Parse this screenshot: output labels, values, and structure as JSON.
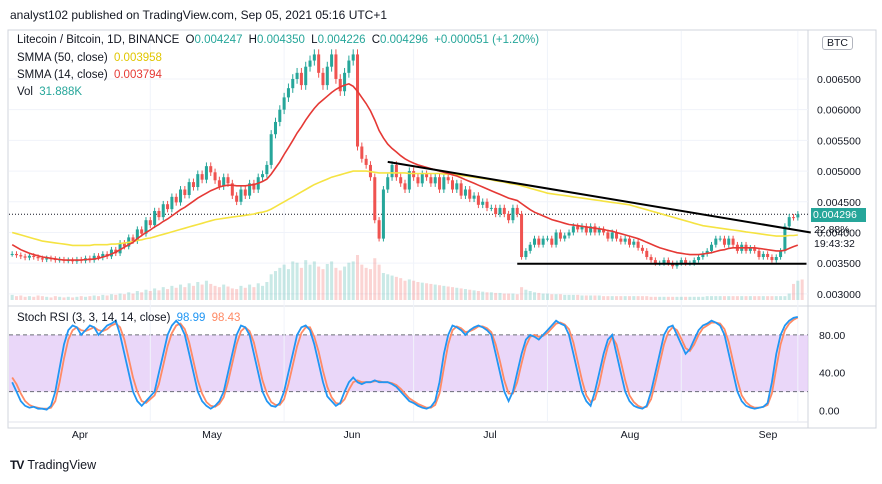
{
  "header": {
    "published_line": "analyst102 published on TradingView.com, Sep 05, 2021 05:16 UTC+1"
  },
  "legend": {
    "symbol": "Litecoin / Bitcoin, 1D, BINANCE",
    "open_label": "O",
    "open": "0.004247",
    "high_label": "H",
    "high": "0.004350",
    "low_label": "L",
    "low": "0.004226",
    "close_label": "C",
    "close": "0.004296",
    "change": "+0.000051 (+1.20%)",
    "sma50_label": "SMMA (50, close)",
    "sma50_value": "0.003958",
    "sma14_label": "SMMA (14, close)",
    "sma14_value": "0.003794",
    "vol_label": "Vol",
    "vol_value": "31.888K",
    "stoch_label": "Stoch RSI (3, 3, 14, 14, close)",
    "stoch_k": "98.99",
    "stoch_d": "98.43"
  },
  "price_panel": {
    "currency_badge": "BTC",
    "current_price": "0.004296",
    "change_pct": "22.88%",
    "countdown": "19:43:32"
  },
  "footer": {
    "logo": "TV",
    "brand": "TradingView"
  },
  "colors": {
    "up": "#26a69a",
    "down": "#ef5350",
    "smma50": "#f5e342",
    "smma14": "#e53935",
    "stoch_k": "#2196f3",
    "stoch_d": "#ff8a65",
    "stoch_band": "#e1c6f7",
    "trendline": "#000000"
  },
  "chart_data": {
    "type": "candlestick",
    "x_ticks": [
      "Apr",
      "May",
      "Jun",
      "Jul",
      "Aug",
      "Sep"
    ],
    "y_ticks": [
      "0.006500",
      "0.006000",
      "0.005500",
      "0.005000",
      "0.004500",
      "0.004000",
      "0.003500",
      "0.003000"
    ],
    "y_tick_values": [
      0.0065,
      0.006,
      0.0055,
      0.005,
      0.0045,
      0.004,
      0.0035,
      0.003
    ],
    "ylim": [
      0.0029,
      0.0072
    ],
    "stoch_ticks": [
      "80.00",
      "40.00",
      "0.00"
    ],
    "stoch_tick_values": [
      80,
      40,
      0
    ],
    "stoch_ylim": [
      -10,
      100
    ],
    "closes": [
      0.00365,
      0.00363,
      0.00361,
      0.00359,
      0.00362,
      0.0036,
      0.00358,
      0.00356,
      0.00358,
      0.00357,
      0.00355,
      0.00356,
      0.00354,
      0.00355,
      0.00353,
      0.00356,
      0.00354,
      0.00358,
      0.00355,
      0.00362,
      0.00359,
      0.00365,
      0.00361,
      0.00372,
      0.00366,
      0.00383,
      0.00377,
      0.00392,
      0.00386,
      0.00405,
      0.00398,
      0.0042,
      0.00412,
      0.00435,
      0.00425,
      0.00446,
      0.00438,
      0.00458,
      0.00449,
      0.0047,
      0.00461,
      0.00482,
      0.00474,
      0.00495,
      0.00486,
      0.00508,
      0.00498,
      0.00485,
      0.00475,
      0.0049,
      0.0048,
      0.0046,
      0.0045,
      0.0047,
      0.0046,
      0.0048,
      0.0047,
      0.0049,
      0.00495,
      0.0051,
      0.0056,
      0.0058,
      0.006,
      0.0062,
      0.00635,
      0.0065,
      0.0066,
      0.0064,
      0.0067,
      0.0068,
      0.0069,
      0.0066,
      0.0064,
      0.0067,
      0.0069,
      0.0065,
      0.0063,
      0.0066,
      0.0068,
      0.0069,
      0.0054,
      0.0052,
      0.0051,
      0.0049,
      0.0042,
      0.0039,
      0.0047,
      0.0049,
      0.0051,
      0.0049,
      0.0048,
      0.0047,
      0.005,
      0.0049,
      0.0048,
      0.00495,
      0.0049,
      0.0048,
      0.0049,
      0.0047,
      0.0049,
      0.00485,
      0.0047,
      0.0048,
      0.0046,
      0.0047,
      0.00455,
      0.0046,
      0.00445,
      0.0045,
      0.0044,
      0.0044,
      0.0043,
      0.0044,
      0.0043,
      0.0042,
      0.0044,
      0.0043,
      0.0036,
      0.0037,
      0.0038,
      0.0039,
      0.0038,
      0.0039,
      0.0039,
      0.0038,
      0.004,
      0.0039,
      0.00395,
      0.004,
      0.0041,
      0.00405,
      0.0041,
      0.004,
      0.0041,
      0.004,
      0.00405,
      0.004,
      0.0039,
      0.004,
      0.0039,
      0.00385,
      0.0039,
      0.0038,
      0.00385,
      0.00375,
      0.0037,
      0.0036,
      0.00355,
      0.0035,
      0.0035,
      0.00355,
      0.0035,
      0.00345,
      0.0035,
      0.00355,
      0.0035,
      0.0035,
      0.00355,
      0.0036,
      0.00365,
      0.0037,
      0.0038,
      0.0039,
      0.0039,
      0.0038,
      0.0039,
      0.0038,
      0.0037,
      0.0038,
      0.0037,
      0.00375,
      0.0037,
      0.0036,
      0.00365,
      0.0036,
      0.00355,
      0.0036,
      0.0037,
      0.0041,
      0.00425,
      0.004245,
      0.004296
    ],
    "smma50": [
      0.004,
      0.00398,
      0.00396,
      0.00394,
      0.00392,
      0.0039,
      0.00388,
      0.00386,
      0.00385,
      0.00384,
      0.00383,
      0.00382,
      0.00381,
      0.0038,
      0.00379,
      0.00379,
      0.00379,
      0.00379,
      0.00379,
      0.0038,
      0.0038,
      0.0038,
      0.0038,
      0.00381,
      0.00381,
      0.00382,
      0.00383,
      0.00384,
      0.00385,
      0.00387,
      0.00388,
      0.0039,
      0.00391,
      0.00393,
      0.00395,
      0.00397,
      0.00399,
      0.00401,
      0.00403,
      0.00405,
      0.00407,
      0.00409,
      0.00411,
      0.00413,
      0.00415,
      0.00417,
      0.00419,
      0.00421,
      0.00422,
      0.00423,
      0.00424,
      0.00425,
      0.00426,
      0.00427,
      0.00428,
      0.00429,
      0.0043,
      0.00432,
      0.00433,
      0.00435,
      0.00438,
      0.00442,
      0.00446,
      0.0045,
      0.00454,
      0.00458,
      0.00462,
      0.00466,
      0.0047,
      0.00474,
      0.00478,
      0.00481,
      0.00484,
      0.00487,
      0.0049,
      0.00492,
      0.00494,
      0.00496,
      0.00498,
      0.005,
      0.005,
      0.005,
      0.005,
      0.00499,
      0.00498,
      0.00497,
      0.00497,
      0.00497,
      0.00497,
      0.00497,
      0.00497,
      0.00497,
      0.00496,
      0.00496,
      0.00496,
      0.00496,
      0.00496,
      0.00496,
      0.00496,
      0.00496,
      0.00495,
      0.00495,
      0.00495,
      0.00494,
      0.00493,
      0.00492,
      0.00491,
      0.0049,
      0.00489,
      0.00488,
      0.00487,
      0.00486,
      0.00484,
      0.00483,
      0.00482,
      0.0048,
      0.00479,
      0.00478,
      0.00476,
      0.00474,
      0.00472,
      0.0047,
      0.00468,
      0.00466,
      0.00464,
      0.00463,
      0.00462,
      0.00461,
      0.0046,
      0.00459,
      0.00458,
      0.00457,
      0.00456,
      0.00455,
      0.00454,
      0.00453,
      0.00452,
      0.00451,
      0.0045,
      0.00449,
      0.00448,
      0.00447,
      0.00446,
      0.00445,
      0.00443,
      0.00441,
      0.00439,
      0.00437,
      0.00435,
      0.00433,
      0.00431,
      0.00429,
      0.00427,
      0.00425,
      0.00423,
      0.00421,
      0.00419,
      0.00417,
      0.00415,
      0.00413,
      0.00411,
      0.0041,
      0.00409,
      0.00408,
      0.00407,
      0.00406,
      0.00405,
      0.00404,
      0.00403,
      0.00402,
      0.00401,
      0.004,
      0.00399,
      0.00398,
      0.00397,
      0.00396,
      0.00395,
      0.00394,
      0.00394,
      0.00394,
      0.00395,
      0.00395,
      0.003958
    ],
    "smma14": [
      0.0038,
      0.00376,
      0.00372,
      0.00369,
      0.00366,
      0.00364,
      0.00362,
      0.0036,
      0.00359,
      0.00358,
      0.00357,
      0.00356,
      0.00355,
      0.00355,
      0.00355,
      0.00355,
      0.00355,
      0.00356,
      0.00356,
      0.00357,
      0.00358,
      0.0036,
      0.00362,
      0.00365,
      0.00368,
      0.00372,
      0.00376,
      0.0038,
      0.00384,
      0.0039,
      0.00395,
      0.004,
      0.00404,
      0.00409,
      0.00413,
      0.00418,
      0.00422,
      0.00427,
      0.00432,
      0.00437,
      0.00441,
      0.00446,
      0.00451,
      0.00456,
      0.0046,
      0.00464,
      0.00468,
      0.00471,
      0.00474,
      0.00476,
      0.00477,
      0.00477,
      0.00476,
      0.00476,
      0.00476,
      0.00477,
      0.00478,
      0.0048,
      0.00483,
      0.00487,
      0.00495,
      0.00505,
      0.00515,
      0.00527,
      0.00538,
      0.0055,
      0.00562,
      0.00572,
      0.00583,
      0.00593,
      0.00602,
      0.0061,
      0.00616,
      0.00622,
      0.00628,
      0.00633,
      0.00637,
      0.0064,
      0.00642,
      0.00638,
      0.0063,
      0.0062,
      0.0061,
      0.00598,
      0.00583,
      0.00566,
      0.00554,
      0.00544,
      0.00537,
      0.00531,
      0.00525,
      0.0052,
      0.00516,
      0.00513,
      0.0051,
      0.00508,
      0.00506,
      0.00504,
      0.00502,
      0.005,
      0.00498,
      0.00496,
      0.00494,
      0.00492,
      0.00489,
      0.00486,
      0.00483,
      0.0048,
      0.00477,
      0.00474,
      0.00471,
      0.00468,
      0.00465,
      0.00462,
      0.00459,
      0.00456,
      0.00454,
      0.00452,
      0.00447,
      0.00442,
      0.00437,
      0.00433,
      0.0043,
      0.00427,
      0.00424,
      0.00421,
      0.00419,
      0.00417,
      0.00415,
      0.00413,
      0.00412,
      0.00411,
      0.0041,
      0.00409,
      0.00408,
      0.00407,
      0.00406,
      0.00405,
      0.00403,
      0.00402,
      0.004,
      0.00398,
      0.00396,
      0.00394,
      0.00392,
      0.0039,
      0.00387,
      0.00384,
      0.00381,
      0.00378,
      0.00375,
      0.00373,
      0.00371,
      0.00369,
      0.00367,
      0.00366,
      0.00365,
      0.00364,
      0.00364,
      0.00364,
      0.00365,
      0.00366,
      0.00367,
      0.00369,
      0.00371,
      0.00372,
      0.00374,
      0.00375,
      0.00375,
      0.00375,
      0.00375,
      0.00375,
      0.00375,
      0.00374,
      0.00373,
      0.00372,
      0.00371,
      0.0037,
      0.0037,
      0.00371,
      0.00374,
      0.00377,
      0.003794
    ],
    "volume": [
      8,
      6,
      7,
      5,
      6,
      5,
      7,
      6,
      5,
      4,
      6,
      5,
      4,
      5,
      4,
      5,
      6,
      5,
      6,
      7,
      6,
      8,
      7,
      9,
      8,
      10,
      9,
      12,
      10,
      14,
      12,
      16,
      14,
      18,
      15,
      20,
      17,
      22,
      19,
      24,
      20,
      26,
      22,
      28,
      24,
      30,
      25,
      22,
      20,
      24,
      21,
      18,
      17,
      22,
      19,
      24,
      20,
      26,
      22,
      28,
      40,
      45,
      50,
      55,
      48,
      60,
      58,
      50,
      62,
      55,
      60,
      52,
      48,
      56,
      60,
      50,
      46,
      52,
      58,
      60,
      70,
      55,
      50,
      48,
      65,
      55,
      42,
      40,
      38,
      36,
      34,
      30,
      32,
      30,
      28,
      27,
      26,
      25,
      24,
      23,
      22,
      21,
      20,
      19,
      18,
      17,
      16,
      15,
      14,
      13,
      12,
      12,
      11,
      11,
      10,
      10,
      10,
      9,
      20,
      16,
      14,
      12,
      11,
      10,
      10,
      9,
      9,
      9,
      8,
      8,
      8,
      8,
      7,
      7,
      7,
      7,
      7,
      6,
      6,
      6,
      6,
      6,
      6,
      6,
      6,
      6,
      6,
      6,
      5,
      5,
      5,
      5,
      5,
      5,
      5,
      5,
      5,
      5,
      5,
      5,
      5,
      6,
      6,
      6,
      6,
      6,
      6,
      6,
      6,
      6,
      6,
      6,
      6,
      6,
      6,
      6,
      6,
      6,
      6,
      6,
      10,
      25,
      30,
      31.888
    ],
    "stoch_k": [
      30,
      20,
      10,
      5,
      3,
      4,
      2,
      2,
      1,
      5,
      20,
      45,
      70,
      85,
      90,
      88,
      80,
      85,
      90,
      88,
      80,
      85,
      90,
      92,
      95,
      80,
      60,
      40,
      20,
      10,
      5,
      10,
      15,
      20,
      40,
      60,
      80,
      90,
      95,
      90,
      80,
      60,
      40,
      20,
      10,
      5,
      2,
      5,
      10,
      20,
      40,
      60,
      80,
      90,
      88,
      80,
      60,
      40,
      20,
      10,
      5,
      4,
      8,
      20,
      40,
      60,
      80,
      88,
      90,
      85,
      70,
      50,
      30,
      15,
      10,
      5,
      8,
      20,
      30,
      35,
      30,
      28,
      30,
      30,
      32,
      30,
      30,
      30,
      28,
      25,
      20,
      15,
      10,
      8,
      5,
      3,
      2,
      4,
      10,
      30,
      60,
      80,
      90,
      88,
      85,
      80,
      85,
      88,
      90,
      88,
      85,
      80,
      60,
      40,
      20,
      10,
      20,
      40,
      60,
      75,
      80,
      78,
      75,
      80,
      85,
      90,
      95,
      92,
      90,
      80,
      60,
      40,
      20,
      10,
      5,
      20,
      40,
      60,
      75,
      80,
      60,
      40,
      20,
      10,
      5,
      3,
      2,
      5,
      20,
      40,
      60,
      80,
      88,
      90,
      80,
      70,
      60,
      65,
      75,
      85,
      90,
      92,
      95,
      93,
      90,
      80,
      60,
      40,
      20,
      10,
      5,
      3,
      2,
      3,
      4,
      8,
      30,
      60,
      80,
      90,
      95,
      98,
      99
    ],
    "stoch_d": [
      35,
      28,
      18,
      10,
      6,
      4,
      3,
      2,
      2,
      3,
      10,
      30,
      55,
      75,
      85,
      88,
      85,
      84,
      86,
      88,
      85,
      84,
      86,
      90,
      92,
      88,
      75,
      55,
      35,
      20,
      10,
      8,
      12,
      16,
      28,
      48,
      68,
      82,
      90,
      92,
      86,
      72,
      52,
      32,
      18,
      9,
      5,
      4,
      7,
      14,
      30,
      50,
      70,
      84,
      88,
      84,
      72,
      52,
      32,
      18,
      9,
      6,
      6,
      12,
      28,
      48,
      68,
      82,
      88,
      88,
      78,
      62,
      42,
      25,
      14,
      8,
      7,
      12,
      22,
      30,
      32,
      30,
      30,
      30,
      31,
      31,
      30,
      30,
      29,
      27,
      23,
      18,
      13,
      10,
      7,
      5,
      3,
      3,
      6,
      18,
      45,
      70,
      85,
      89,
      87,
      83,
      84,
      86,
      89,
      89,
      87,
      83,
      70,
      52,
      32,
      18,
      18,
      30,
      50,
      68,
      78,
      80,
      78,
      79,
      82,
      87,
      92,
      93,
      91,
      86,
      72,
      52,
      32,
      16,
      9,
      12,
      28,
      50,
      68,
      78,
      70,
      52,
      32,
      16,
      9,
      5,
      3,
      4,
      12,
      30,
      50,
      70,
      83,
      88,
      85,
      76,
      66,
      63,
      70,
      80,
      87,
      90,
      93,
      93,
      92,
      86,
      72,
      52,
      32,
      16,
      9,
      5,
      3,
      3,
      4,
      6,
      18,
      45,
      70,
      85,
      92,
      96,
      98.43
    ]
  }
}
